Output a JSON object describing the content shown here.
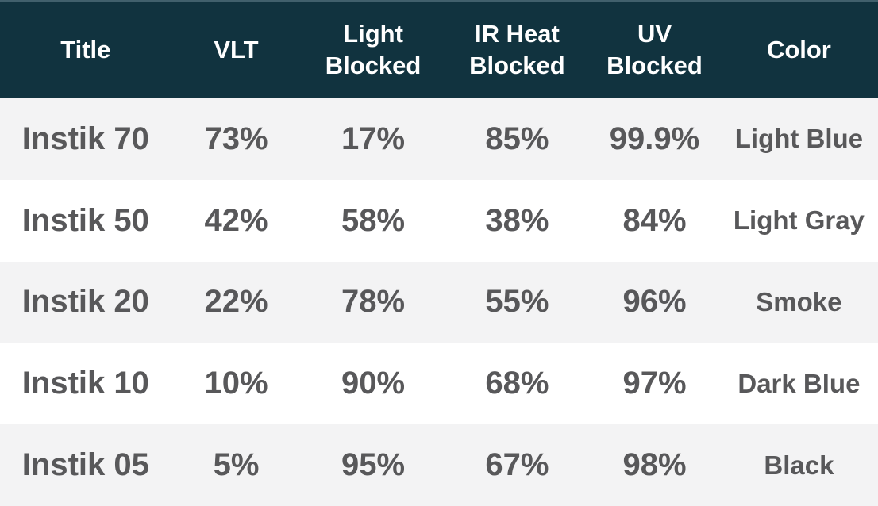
{
  "colors": {
    "header_bg": "#11333f",
    "header_text": "#ffffff",
    "row_alt_bg": "#f3f3f4",
    "row_bg": "#ffffff",
    "cell_text": "#58585a"
  },
  "table": {
    "columns": [
      {
        "label": "Title"
      },
      {
        "label": "VLT"
      },
      {
        "label": "Light Blocked"
      },
      {
        "label": "IR Heat Blocked"
      },
      {
        "label": "UV Blocked"
      },
      {
        "label": "Color"
      }
    ],
    "rows": [
      {
        "cells": [
          "Instik 70",
          "73%",
          "17%",
          "85%",
          "99.9%",
          "Light Blue"
        ]
      },
      {
        "cells": [
          "Instik 50",
          "42%",
          "58%",
          "38%",
          "84%",
          "Light Gray"
        ]
      },
      {
        "cells": [
          "Instik 20",
          "22%",
          "78%",
          "55%",
          "96%",
          "Smoke"
        ]
      },
      {
        "cells": [
          "Instik 10",
          "10%",
          "90%",
          "68%",
          "97%",
          "Dark Blue"
        ]
      },
      {
        "cells": [
          "Instik 05",
          "5%",
          "95%",
          "67%",
          "98%",
          "Black"
        ]
      }
    ]
  },
  "chart_data": {
    "type": "table",
    "columns": [
      "Title",
      "VLT",
      "Light Blocked",
      "IR Heat Blocked",
      "UV Blocked",
      "Color"
    ],
    "rows": [
      [
        "Instik 70",
        "73%",
        "17%",
        "85%",
        "99.9%",
        "Light Blue"
      ],
      [
        "Instik 50",
        "42%",
        "58%",
        "38%",
        "84%",
        "Light Gray"
      ],
      [
        "Instik 20",
        "22%",
        "78%",
        "55%",
        "96%",
        "Smoke"
      ],
      [
        "Instik 10",
        "10%",
        "90%",
        "68%",
        "97%",
        "Dark Blue"
      ],
      [
        "Instik 05",
        "5%",
        "95%",
        "67%",
        "98%",
        "Black"
      ]
    ]
  }
}
